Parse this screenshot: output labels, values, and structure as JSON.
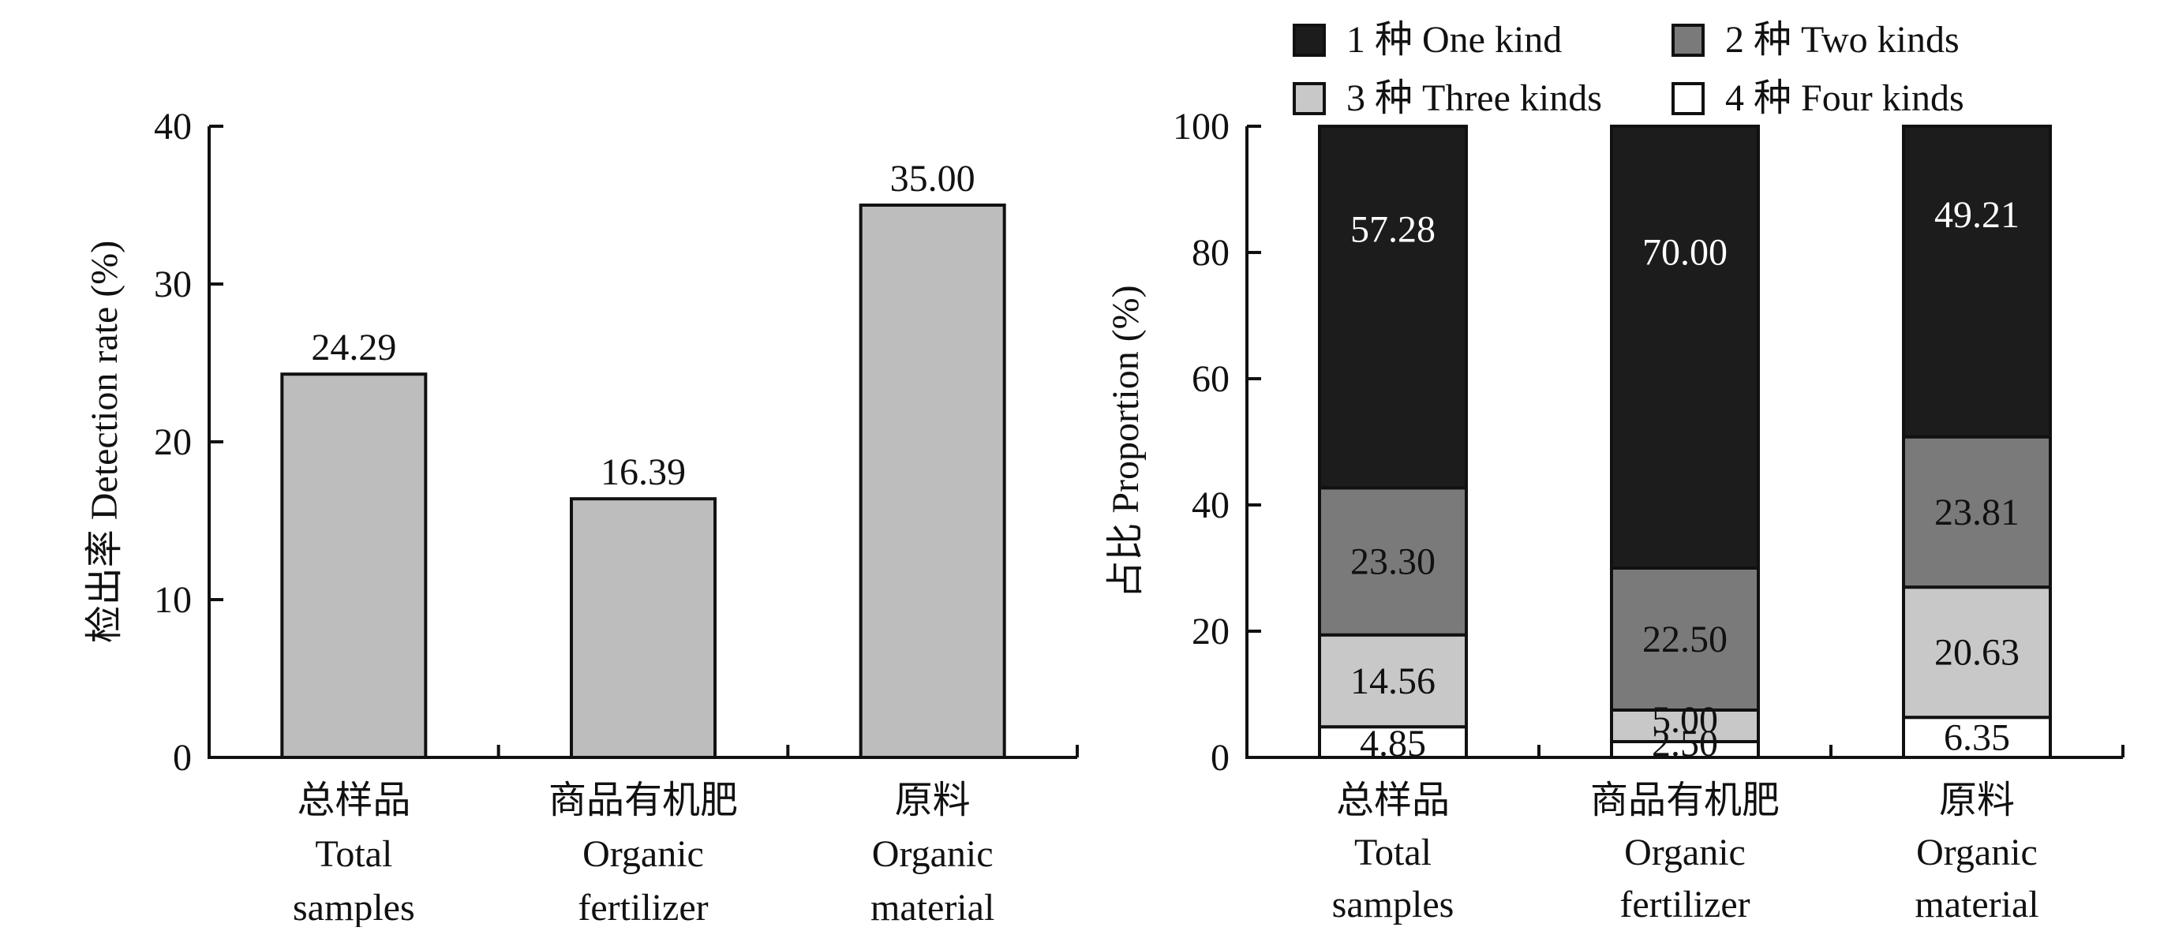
{
  "chart_data": [
    {
      "type": "bar",
      "categories": [
        [
          "总样品",
          "Total",
          "samples"
        ],
        [
          "商品有机肥",
          "Organic",
          "fertilizer"
        ],
        [
          "原料",
          "Organic",
          "material"
        ]
      ],
      "values": [
        24.29,
        16.39,
        35.0
      ],
      "value_labels": [
        "24.29",
        "16.39",
        "35.00"
      ],
      "ylabel": "检出率 Detection rate (%)",
      "ylim": [
        0,
        40
      ],
      "yticks": [
        "0",
        "10",
        "20",
        "30",
        "40"
      ],
      "bar_color": "#bdbdbd",
      "grid": false
    },
    {
      "type": "bar",
      "stacked": true,
      "categories": [
        [
          "总样品",
          "Total",
          "samples"
        ],
        [
          "商品有机肥",
          "Organic",
          "fertilizer"
        ],
        [
          "原料",
          "Organic",
          "material"
        ]
      ],
      "series": [
        {
          "name": "4 种 Four kinds",
          "color": "#ffffff",
          "text_color": "#111111",
          "values": [
            4.85,
            2.5,
            6.35
          ],
          "labels": [
            "4.85",
            "2.50",
            "6.35"
          ]
        },
        {
          "name": "3 种 Three kinds",
          "color": "#c8c8c8",
          "text_color": "#111111",
          "values": [
            14.56,
            5.0,
            20.63
          ],
          "labels": [
            "14.56",
            "5.00",
            "20.63"
          ]
        },
        {
          "name": "2 种 Two kinds",
          "color": "#7a7a7a",
          "text_color": "#111111",
          "values": [
            23.3,
            22.5,
            23.81
          ],
          "labels": [
            "23.30",
            "22.50",
            "23.81"
          ]
        },
        {
          "name": "1 种 One kind",
          "color": "#1c1c1c",
          "text_color": "#ffffff",
          "values": [
            57.28,
            70.0,
            49.21
          ],
          "labels": [
            "57.28",
            "70.00",
            "49.21"
          ]
        }
      ],
      "legend_order": [
        "1 种 One kind",
        "2 种 Two kinds",
        "3 种 Three kinds",
        "4 种 Four kinds"
      ],
      "legend_position": "top",
      "ylabel": "占比 Proportion (%)",
      "ylim": [
        0,
        100
      ],
      "yticks": [
        "0",
        "20",
        "40",
        "60",
        "80",
        "100"
      ],
      "grid": false
    }
  ]
}
